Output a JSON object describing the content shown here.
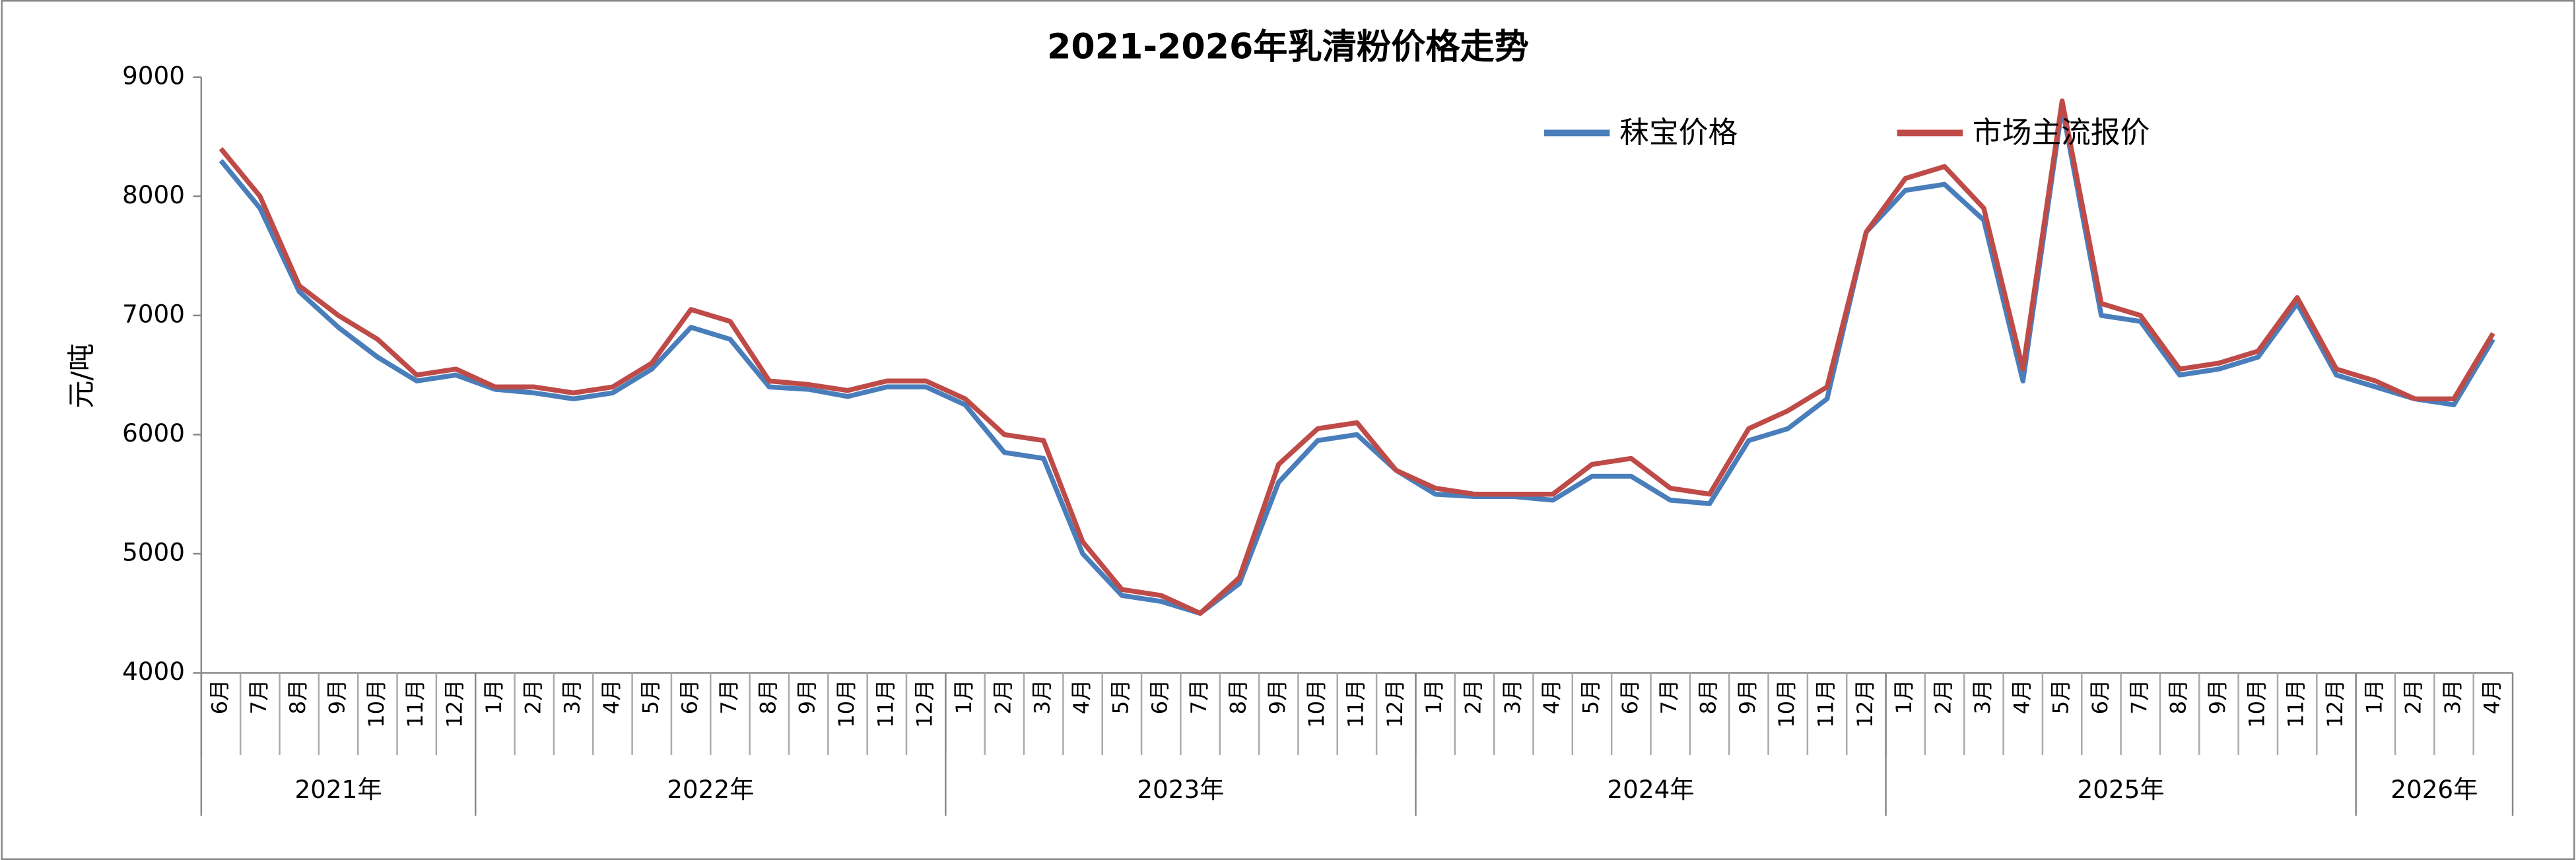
{
  "chart_data": {
    "type": "line",
    "title": "2021-2026年乳清粉价格走势",
    "y_label": "元/吨",
    "categories": [
      "6月",
      "7月",
      "8月",
      "9月",
      "10月",
      "11月",
      "12月",
      "1月",
      "2月",
      "3月",
      "4月",
      "5月",
      "6月",
      "7月",
      "8月",
      "9月",
      "10月",
      "11月",
      "12月",
      "1月",
      "2月",
      "3月",
      "4月",
      "5月",
      "6月",
      "7月",
      "8月",
      "9月",
      "10月",
      "11月",
      "12月",
      "1月",
      "2月",
      "3月",
      "4月",
      "5月",
      "6月",
      "7月",
      "8月",
      "9月",
      "10月",
      "11月",
      "12月",
      "1月",
      "2月",
      "3月",
      "4月",
      "5月",
      "6月",
      "7月",
      "8月",
      "9月",
      "10月",
      "11月",
      "12月",
      "1月",
      "2月",
      "3月",
      "4月"
    ],
    "years": [
      "2021年",
      "2022年",
      "2023年",
      "2024年",
      "2025年",
      "2026年"
    ],
    "series": [
      {
        "name": "秣宝价格",
        "color": "#4a7ebb",
        "values": [
          8300,
          7900,
          7200,
          6900,
          6650,
          6450,
          6500,
          6380,
          6350,
          6300,
          6350,
          6550,
          6900,
          6800,
          6400,
          6380,
          6320,
          6400,
          6400,
          6250,
          5850,
          5800,
          5000,
          4650,
          4600,
          4500,
          4750,
          5600,
          5950,
          6000,
          5700,
          5500,
          5480,
          5480,
          5450,
          5650,
          5650,
          5450,
          5420,
          5950,
          6050,
          6300,
          7700,
          8050,
          8100,
          7800,
          6450,
          8750,
          7000,
          6950,
          6500,
          6550,
          6650,
          7100,
          6500,
          6400,
          6300,
          6250,
          6800
        ]
      },
      {
        "name": "市场主流报价",
        "color": "#be4b48",
        "values": [
          8400,
          8000,
          7250,
          7000,
          6800,
          6500,
          6550,
          6400,
          6400,
          6350,
          6400,
          6600,
          7050,
          6950,
          6450,
          6420,
          6370,
          6450,
          6450,
          6300,
          6000,
          5950,
          5100,
          4700,
          4650,
          4500,
          4800,
          5750,
          6050,
          6100,
          5700,
          5550,
          5500,
          5500,
          5500,
          5750,
          5800,
          5550,
          5500,
          6050,
          6200,
          6400,
          7700,
          8150,
          8250,
          7900,
          6550,
          8800,
          7100,
          7000,
          6550,
          6600,
          6700,
          7150,
          6550,
          6450,
          6300,
          6300,
          6850
        ]
      }
    ],
    "ylim": [
      4000,
      9000
    ],
    "yticks": [
      4000,
      5000,
      6000,
      7000,
      8000,
      9000
    ],
    "legend": "top-right"
  }
}
